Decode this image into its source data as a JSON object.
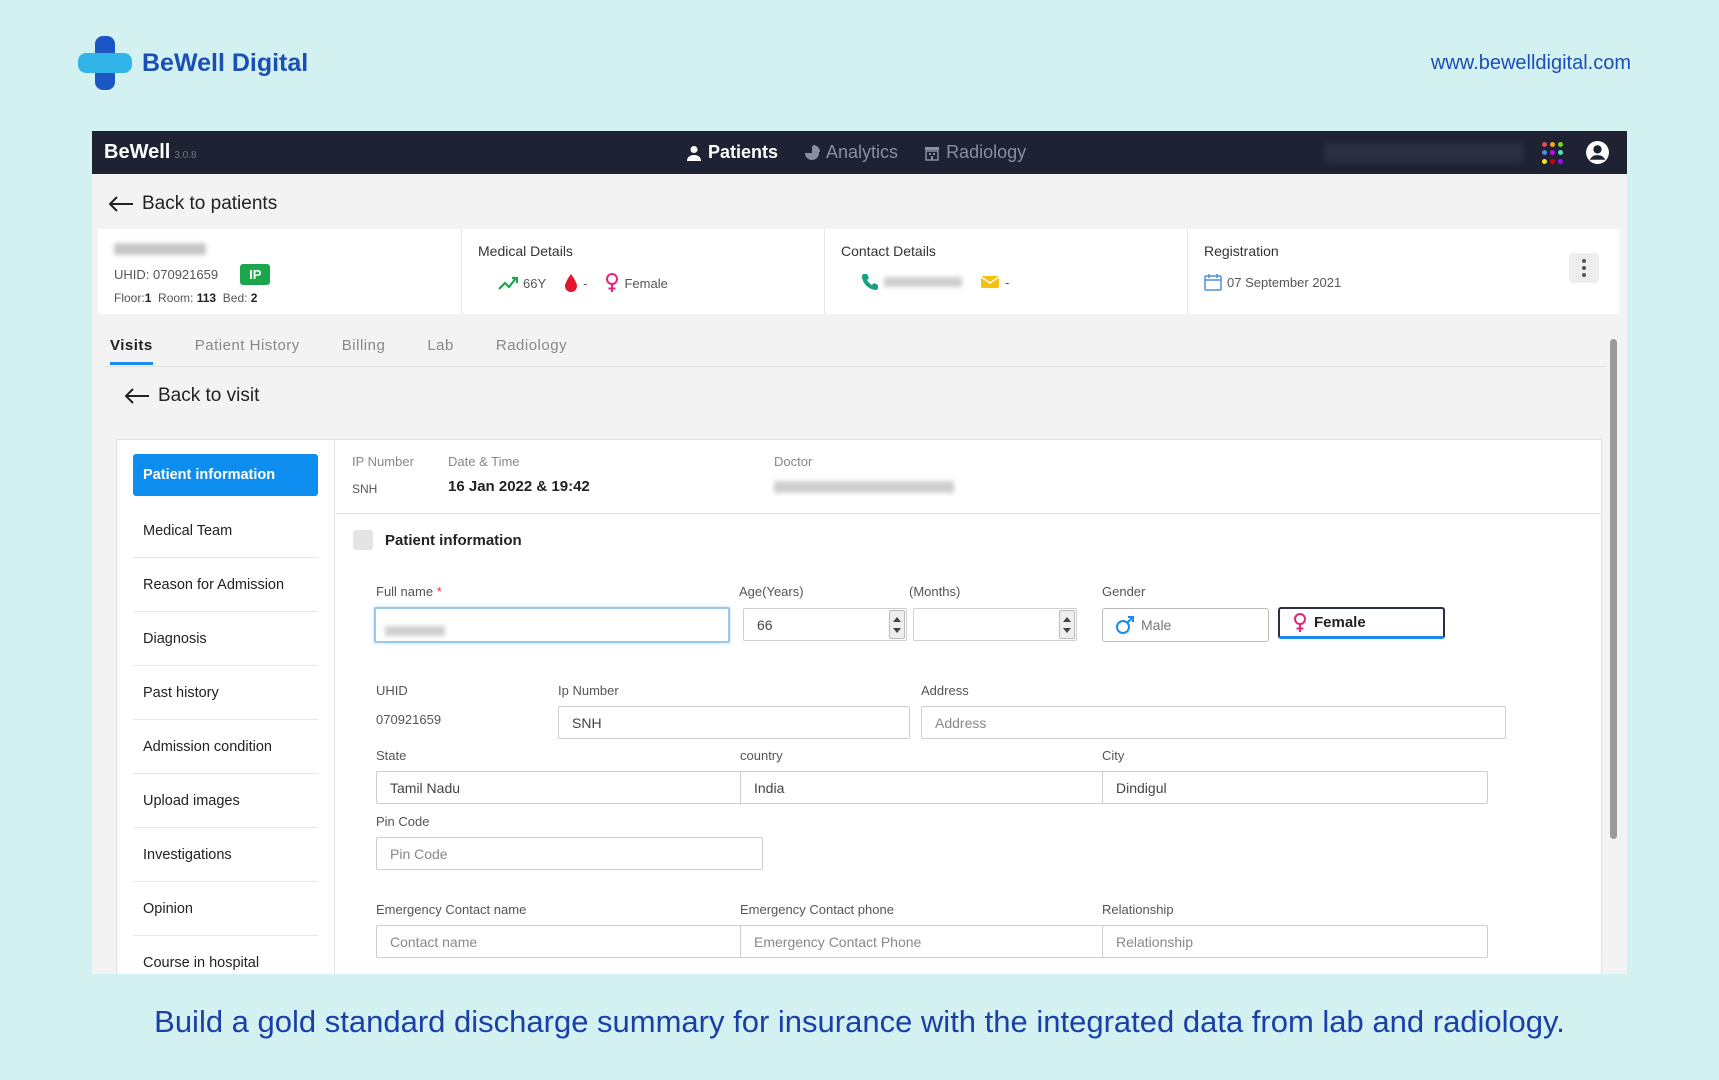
{
  "brand": {
    "name": "BeWell Digital",
    "url": "www.bewelldigital.com"
  },
  "tagline": "Build a gold standard discharge summary for insurance with the integrated data from lab and radiology.",
  "app": {
    "name": "BeWell",
    "version": "3.0.8",
    "nav": [
      {
        "label": "Patients",
        "icon": "user-icon"
      },
      {
        "label": "Analytics",
        "icon": "pie-chart-icon"
      },
      {
        "label": "Radiology",
        "icon": "building-icon"
      }
    ]
  },
  "back_to_patients": "Back to patients",
  "patient": {
    "uhid_label": "UHID: 070921659",
    "badge": "IP",
    "floor_label": "Floor:",
    "floor": "1",
    "room_label": "Room:",
    "room": "113",
    "bed_label": "Bed:",
    "bed": "2"
  },
  "medical": {
    "title": "Medical Details",
    "age": "66Y",
    "blood": "-",
    "gender": "Female"
  },
  "contact": {
    "title": "Contact Details",
    "email": "-"
  },
  "registration": {
    "title": "Registration",
    "date": "07 September 2021"
  },
  "tabs": [
    "Visits",
    "Patient History",
    "Billing",
    "Lab",
    "Radiology"
  ],
  "back_to_visit": "Back to visit",
  "sidebar": [
    "Patient information",
    "Medical Team",
    "Reason for Admission",
    "Diagnosis",
    "Past history",
    "Admission condition",
    "Upload images",
    "Investigations",
    "Opinion",
    "Course in hospital"
  ],
  "visit": {
    "ip_label": "IP Number",
    "ip_value": "SNH",
    "dt_label": "Date & Time",
    "dt_value": "16 Jan 2022 & 19:42",
    "doctor_label": "Doctor"
  },
  "form": {
    "section_title": "Patient information",
    "full_name_label": "Full name",
    "required_mark": "*",
    "age_label": "Age(Years)",
    "age_value": "66",
    "months_label": "(Months)",
    "gender_label": "Gender",
    "male": "Male",
    "female": "Female",
    "uhid_label": "UHID",
    "uhid_value": "070921659",
    "ip_label": "Ip Number",
    "ip_value": "SNH",
    "address_label": "Address",
    "address_placeholder": "Address",
    "state_label": "State",
    "state_value": "Tamil Nadu",
    "country_label": "country",
    "country_value": "India",
    "city_label": "City",
    "city_value": "Dindigul",
    "pin_label": "Pin Code",
    "pin_placeholder": "Pin Code",
    "ec_name_label": "Emergency Contact name",
    "ec_name_placeholder": "Contact name",
    "ec_phone_label": "Emergency Contact phone",
    "ec_phone_placeholder": "Emergency Contact Phone",
    "rel_label": "Relationship",
    "rel_placeholder": "Relationship"
  },
  "colors": {
    "accent": "#0e8df1",
    "topbar": "#1e2233",
    "badge": "#1aa64a",
    "brand": "#1a4fb4"
  }
}
